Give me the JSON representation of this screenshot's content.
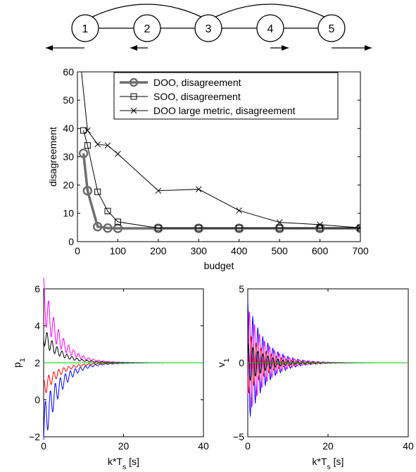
{
  "graph": {
    "nodes": [
      "1",
      "2",
      "3",
      "4",
      "5"
    ],
    "edges": [
      [
        1,
        2
      ],
      [
        2,
        3
      ],
      [
        3,
        4
      ],
      [
        4,
        5
      ],
      [
        1,
        3
      ],
      [
        3,
        5
      ]
    ],
    "arrows": [
      "left",
      "left",
      "none",
      "right",
      "right"
    ]
  },
  "chart_data": [
    {
      "type": "line",
      "xlabel": "budget",
      "ylabel": "disagreement",
      "xlim": [
        0,
        700
      ],
      "ylim": [
        0,
        60
      ],
      "xticks": [
        0,
        100,
        200,
        300,
        400,
        500,
        600,
        700
      ],
      "yticks": [
        0,
        10,
        20,
        30,
        40,
        50,
        60
      ],
      "legend_position": "top-center",
      "series": [
        {
          "name": "DOO, disagreement",
          "marker": "circle",
          "color": "#6e6e6e",
          "x": [
            15,
            25,
            50,
            75,
            100,
            200,
            300,
            400,
            500,
            600,
            700
          ],
          "y": [
            31.2,
            18.0,
            5.3,
            4.8,
            4.7,
            4.7,
            4.7,
            4.7,
            4.7,
            4.7,
            4.7
          ]
        },
        {
          "name": "SOO, disagreement",
          "marker": "square",
          "color": "#000000",
          "x": [
            15,
            25,
            50,
            75,
            100,
            200,
            300,
            400,
            500,
            600,
            700
          ],
          "y": [
            39.3,
            34.0,
            17.6,
            10.8,
            7.0,
            4.8,
            4.8,
            4.8,
            4.8,
            4.8,
            4.8
          ]
        },
        {
          "name": "DOO large metric, disagreement",
          "marker": "x",
          "color": "#000000",
          "x": [
            10,
            25,
            50,
            75,
            100,
            200,
            300,
            400,
            500,
            600,
            700
          ],
          "y": [
            60.0,
            39.3,
            34.4,
            34.0,
            31.0,
            18.0,
            18.5,
            11.0,
            6.8,
            6.0,
            4.9
          ]
        }
      ]
    },
    {
      "type": "line",
      "xlabel": "k*T_s [s]",
      "ylabel": "p_1",
      "xlim": [
        0,
        40
      ],
      "ylim": [
        -2,
        6
      ],
      "xticks": [
        0,
        20,
        40
      ],
      "yticks": [
        -2,
        0,
        2,
        4,
        6
      ],
      "kind": "damped-oscillation",
      "settle_value": 2,
      "settle_time": 20,
      "series": [
        {
          "color": "#ff00ff",
          "start": 5.4,
          "amp": 3.4,
          "phase": 0
        },
        {
          "color": "#0000ff",
          "start": -1.5,
          "amp": 3.5,
          "phase": 1
        },
        {
          "color": "#000000",
          "start": 3.5,
          "amp": 1.5,
          "phase": 0
        },
        {
          "color": "#ff0000",
          "start": 0.6,
          "amp": 1.4,
          "phase": 1
        },
        {
          "color": "#00cc00",
          "start": 2.0,
          "amp": 0.0,
          "phase": 0
        }
      ]
    },
    {
      "type": "line",
      "xlabel": "k*T_s [s]",
      "ylabel": "v_1",
      "xlim": [
        0,
        40
      ],
      "ylim": [
        -5,
        5
      ],
      "xticks": [
        0,
        20,
        40
      ],
      "yticks": [
        -5,
        0,
        5
      ],
      "kind": "damped-oscillation",
      "settle_value": 0,
      "settle_time": 22,
      "series": [
        {
          "color": "#0000ff",
          "start": 0,
          "amp": 4.2,
          "phase": 0
        },
        {
          "color": "#ff00ff",
          "start": 0,
          "amp": 3.9,
          "phase": 1
        },
        {
          "color": "#ff0000",
          "start": 0,
          "amp": 2.2,
          "phase": 0
        },
        {
          "color": "#000000",
          "start": 0,
          "amp": 1.4,
          "phase": 1
        },
        {
          "color": "#00cc00",
          "start": 0,
          "amp": 0.0,
          "phase": 0
        }
      ]
    }
  ]
}
